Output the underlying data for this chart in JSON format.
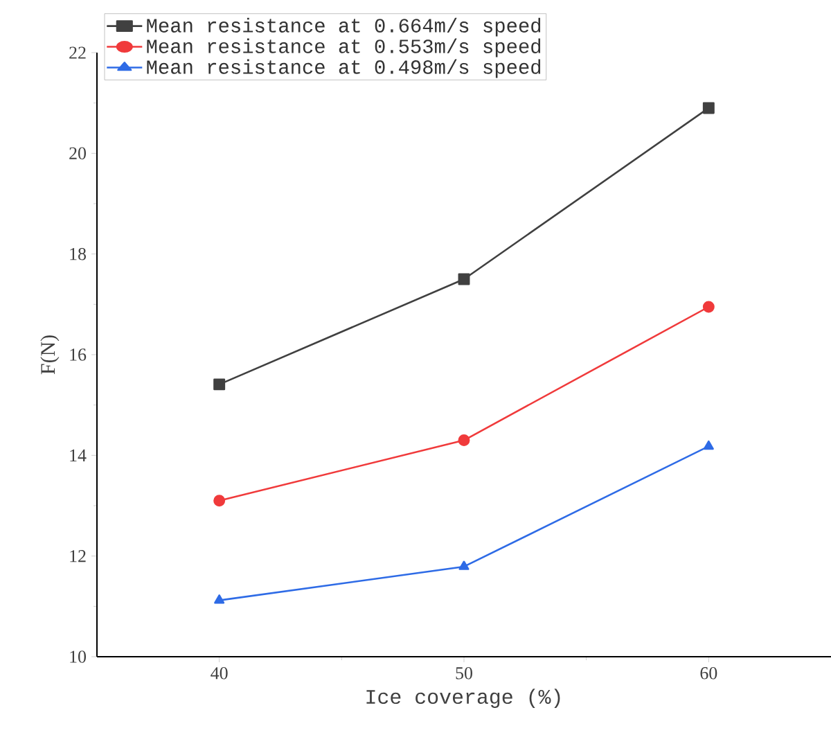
{
  "chart_data": {
    "type": "line",
    "xlabel": "Ice coverage (%)",
    "ylabel": "F(N)",
    "x": [
      40,
      50,
      60
    ],
    "series": [
      {
        "name": "Mean resistance at 0.664m/s speed",
        "color": "#404040",
        "marker": "square",
        "values": [
          15.41,
          17.5,
          20.9
        ]
      },
      {
        "name": "Mean resistance at 0.553m/s speed",
        "color": "#f03a3b",
        "marker": "circle",
        "values": [
          13.1,
          14.3,
          16.95
        ]
      },
      {
        "name": "Mean resistance at 0.498m/s speed",
        "color": "#2e6be6",
        "marker": "triangle",
        "values": [
          11.12,
          11.79,
          14.18
        ]
      }
    ],
    "xlim": [
      35,
      65
    ],
    "ylim": [
      10,
      22
    ],
    "xticks": [
      40,
      50,
      60
    ],
    "yticks": [
      10,
      12,
      14,
      16,
      18,
      20,
      22
    ],
    "grid": false,
    "legend": "top left",
    "line_style": "solid"
  }
}
